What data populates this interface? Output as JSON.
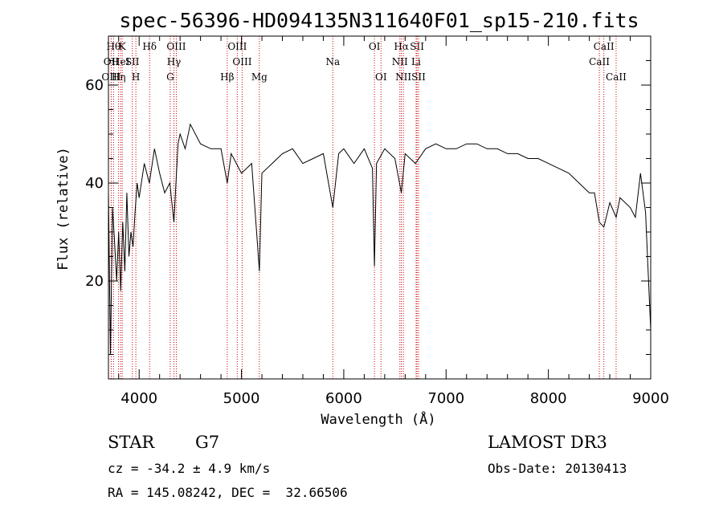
{
  "chart_data": {
    "type": "line",
    "title": "spec-56396-HD094135N311640F01_sp15-210.fits",
    "xlabel": "Wavelength (Å)",
    "ylabel": "Flux (relative)",
    "xlim": [
      3700,
      9000
    ],
    "ylim": [
      0,
      70
    ],
    "xticks": [
      4000,
      5000,
      6000,
      7000,
      8000,
      9000
    ],
    "yticks": [
      20,
      40,
      60
    ],
    "grid": false,
    "series": [
      {
        "x": [
          3700,
          3720,
          3740,
          3760,
          3780,
          3800,
          3820,
          3840,
          3860,
          3880,
          3900,
          3920,
          3940,
          3960,
          3980,
          4000,
          4050,
          4100,
          4150,
          4200,
          4250,
          4300,
          4340,
          4380,
          4400,
          4450,
          4500,
          4600,
          4700,
          4800,
          4861,
          4900,
          5000,
          5100,
          5175,
          5200,
          5300,
          5400,
          5500,
          5600,
          5700,
          5800,
          5893,
          5950,
          6000,
          6100,
          6200,
          6280,
          6300,
          6320,
          6400,
          6500,
          6563,
          6600,
          6700,
          6800,
          6900,
          7000,
          7100,
          7200,
          7300,
          7400,
          7500,
          7600,
          7700,
          7800,
          7900,
          8000,
          8100,
          8200,
          8300,
          8400,
          8450,
          8498,
          8542,
          8600,
          8662,
          8700,
          8800,
          8850,
          8900,
          8950,
          9000
        ],
        "y": [
          38,
          5,
          35,
          28,
          20,
          30,
          18,
          32,
          22,
          38,
          25,
          30,
          27,
          34,
          40,
          37,
          44,
          40,
          47,
          42,
          38,
          40,
          32,
          48,
          50,
          47,
          52,
          48,
          47,
          47,
          40,
          46,
          42,
          44,
          22,
          42,
          44,
          46,
          47,
          44,
          45,
          46,
          35,
          46,
          47,
          44,
          47,
          43,
          23,
          44,
          47,
          45,
          38,
          46,
          44,
          47,
          48,
          47,
          47,
          48,
          48,
          47,
          47,
          46,
          46,
          45,
          45,
          44,
          43,
          42,
          40,
          38,
          38,
          32,
          31,
          36,
          33,
          37,
          35,
          33,
          42,
          34,
          10
        ]
      }
    ],
    "lines": [
      {
        "x": 3750,
        "label": "Hθ",
        "row": 1
      },
      {
        "x": 3727,
        "label": "OII",
        "row": 2
      },
      {
        "x": 3727,
        "label": "OIII",
        "row": 3
      },
      {
        "x": 3835,
        "label": "K",
        "row": 1
      },
      {
        "x": 3820,
        "label": "HeI",
        "row": 2
      },
      {
        "x": 3799,
        "label": "Hη",
        "row": 3
      },
      {
        "x": 4102,
        "label": "Hδ",
        "row": 1
      },
      {
        "x": 3933,
        "label": "SII",
        "row": 2
      },
      {
        "x": 3968,
        "label": "H",
        "row": 3
      },
      {
        "x": 4363,
        "label": "OIII",
        "row": 1
      },
      {
        "x": 4340,
        "label": "Hγ",
        "row": 2
      },
      {
        "x": 4304,
        "label": "G",
        "row": 3
      },
      {
        "x": 4959,
        "label": "OIII",
        "row": 1
      },
      {
        "x": 5007,
        "label": "OIII",
        "row": 2
      },
      {
        "x": 4861,
        "label": "Hβ",
        "row": 3
      },
      {
        "x": 5175,
        "label": "Mg",
        "row": 3
      },
      {
        "x": 5893,
        "label": "Na",
        "row": 2
      },
      {
        "x": 6300,
        "label": "OI",
        "row": 1
      },
      {
        "x": 6364,
        "label": "OI",
        "row": 3
      },
      {
        "x": 6563,
        "label": "Hα",
        "row": 1
      },
      {
        "x": 6548,
        "label": "NII",
        "row": 2
      },
      {
        "x": 6583,
        "label": "NII",
        "row": 3
      },
      {
        "x": 6716,
        "label": "SII",
        "row": 1
      },
      {
        "x": 6707,
        "label": "Li",
        "row": 2
      },
      {
        "x": 6731,
        "label": "SII",
        "row": 3
      },
      {
        "x": 8542,
        "label": "CaII",
        "row": 1
      },
      {
        "x": 8498,
        "label": "CaII",
        "row": 2
      },
      {
        "x": 8662,
        "label": "CaII",
        "row": 3
      }
    ]
  },
  "info": {
    "object_class": "STAR",
    "subclass": "G7",
    "survey": "LAMOST DR3",
    "cz": "cz = -34.2 ± 4.9 km/s",
    "obs_date": "Obs-Date: 20130413",
    "coords": "RA = 145.08242, DEC =  32.66506"
  }
}
